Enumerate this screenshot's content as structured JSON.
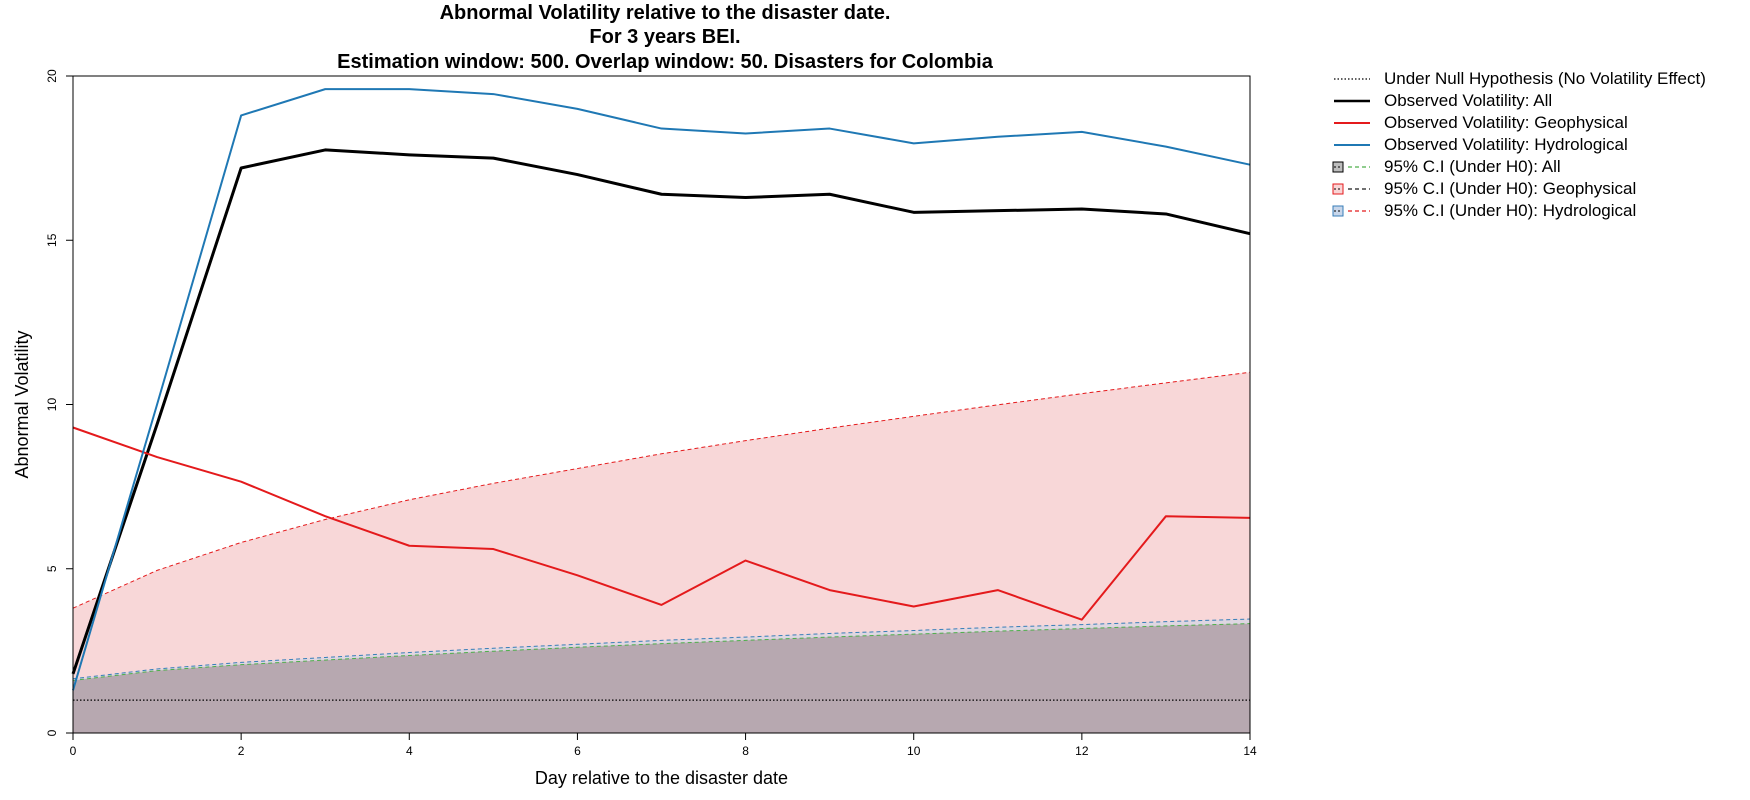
{
  "chart_data": {
    "type": "line",
    "title": [
      "Abnormal Volatility relative to the disaster date.",
      "For 3 years BEI.",
      "Estimation window: 500. Overlap window: 50. Disasters for Colombia"
    ],
    "xlabel": "Day relative to the disaster date",
    "ylabel": "Abnormal Volatility",
    "xlim": [
      0,
      14
    ],
    "ylim": [
      0,
      20
    ],
    "xticks": [
      0,
      2,
      4,
      6,
      8,
      10,
      12,
      14
    ],
    "yticks": [
      0,
      5,
      10,
      15,
      20
    ],
    "x": [
      0,
      1,
      2,
      3,
      4,
      5,
      6,
      7,
      8,
      9,
      10,
      11,
      12,
      13,
      14
    ],
    "null_hypothesis": {
      "name": "Under Null Hypothesis (No Volatility Effect)",
      "value": 1.0,
      "color": "#000000"
    },
    "series": [
      {
        "name": "Observed Volatility: All",
        "color": "#000000",
        "values": [
          1.8,
          9.4,
          17.2,
          17.75,
          17.6,
          17.5,
          17.0,
          16.4,
          16.3,
          16.4,
          15.85,
          15.9,
          15.95,
          15.8,
          15.2
        ]
      },
      {
        "name": "Observed Volatility: Geophysical",
        "color": "#e41a1c",
        "values": [
          9.3,
          8.4,
          7.65,
          6.6,
          5.7,
          5.6,
          4.8,
          3.9,
          5.25,
          4.35,
          3.85,
          4.35,
          3.45,
          6.6,
          6.55
        ]
      },
      {
        "name": "Observed Volatility: Hydrological",
        "color": "#1f78b4",
        "values": [
          1.3,
          10.0,
          18.8,
          19.6,
          19.6,
          19.45,
          19.0,
          18.4,
          18.25,
          18.4,
          17.95,
          18.15,
          18.3,
          17.85,
          17.3
        ]
      }
    ],
    "confidence_bands": [
      {
        "name": "95% C.I (Under H0): All",
        "fill": "#bdbdbd",
        "line_color": "#4daf4a",
        "upper": [
          1.6,
          1.9,
          2.08,
          2.22,
          2.36,
          2.49,
          2.61,
          2.72,
          2.82,
          2.92,
          3.01,
          3.1,
          3.18,
          3.26,
          3.33
        ]
      },
      {
        "name": "95% C.I (Under H0): Geophysical",
        "fill": "#f8d5d6",
        "line_color": "#e41a1c",
        "upper": [
          3.8,
          4.95,
          5.8,
          6.5,
          7.1,
          7.6,
          8.05,
          8.5,
          8.9,
          9.28,
          9.64,
          9.99,
          10.33,
          10.66,
          10.98
        ]
      },
      {
        "name": "95% C.I (Under H0): Hydrological",
        "fill": "#c8d6ea",
        "line_color": "#377eb8",
        "upper": [
          1.65,
          1.95,
          2.15,
          2.3,
          2.45,
          2.58,
          2.7,
          2.82,
          2.92,
          3.03,
          3.12,
          3.22,
          3.3,
          3.39,
          3.47
        ]
      }
    ],
    "legend": [
      "Under Null Hypothesis (No Volatility Effect)",
      "Observed Volatility: All",
      "Observed Volatility: Geophysical",
      "Observed Volatility: Hydrological",
      "95% C.I (Under H0): All",
      "95% C.I (Under H0): Geophysical",
      "95% C.I (Under H0): Hydrological"
    ],
    "legend_position": "top-right outside plot",
    "grid": false
  }
}
